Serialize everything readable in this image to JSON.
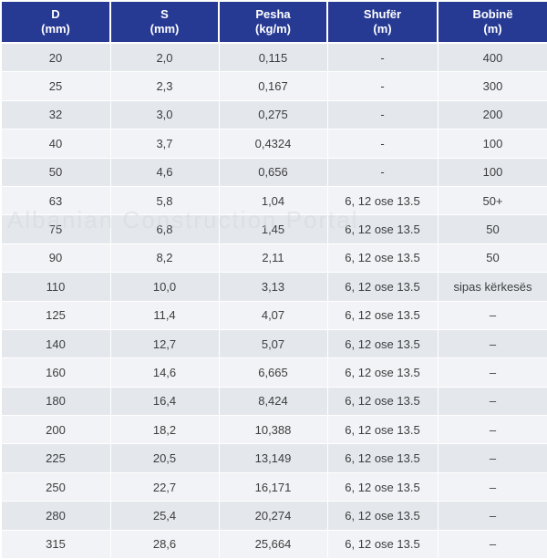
{
  "table": {
    "headers": [
      {
        "line1": "D",
        "line2": "(mm)"
      },
      {
        "line1": "S",
        "line2": "(mm)"
      },
      {
        "line1": "Pesha",
        "line2": "(kg/m)"
      },
      {
        "line1": "Shufër",
        "line2": "(m)"
      },
      {
        "line1": "Bobinë",
        "line2": "(m)"
      }
    ],
    "rows": [
      [
        "20",
        "2,0",
        "0,115",
        "-",
        "400"
      ],
      [
        "25",
        "2,3",
        "0,167",
        "-",
        "300"
      ],
      [
        "32",
        "3,0",
        "0,275",
        "-",
        "200"
      ],
      [
        "40",
        "3,7",
        "0,4324",
        "-",
        "100"
      ],
      [
        "50",
        "4,6",
        "0,656",
        "-",
        "100"
      ],
      [
        "63",
        "5,8",
        "1,04",
        "6, 12 ose 13.5",
        "50+"
      ],
      [
        "75",
        "6,8",
        "1,45",
        "6, 12 ose 13.5",
        "50"
      ],
      [
        "90",
        "8,2",
        "2,11",
        "6, 12 ose 13.5",
        "50"
      ],
      [
        "110",
        "10,0",
        "3,13",
        "6, 12 ose 13.5",
        "sipas kërkesës"
      ],
      [
        "125",
        "11,4",
        "4,07",
        "6, 12 ose 13.5",
        "–"
      ],
      [
        "140",
        "12,7",
        "5,07",
        "6, 12 ose 13.5",
        "–"
      ],
      [
        "160",
        "14,6",
        "6,665",
        "6, 12 ose 13.5",
        "–"
      ],
      [
        "180",
        "16,4",
        "8,424",
        "6, 12 ose 13.5",
        "–"
      ],
      [
        "200",
        "18,2",
        "10,388",
        "6, 12 ose 13.5",
        "–"
      ],
      [
        "225",
        "20,5",
        "13,149",
        "6, 12 ose 13.5",
        "–"
      ],
      [
        "250",
        "22,7",
        "16,171",
        "6, 12 ose 13.5",
        "–"
      ],
      [
        "280",
        "25,4",
        "20,274",
        "6, 12 ose 13.5",
        "–"
      ],
      [
        "315",
        "28,6",
        "25,664",
        "6, 12 ose 13.5",
        "–"
      ]
    ]
  },
  "watermark": "Albanian Construction Portal",
  "colors": {
    "header_bg": "#273a93",
    "header_text": "#ffffff",
    "row_odd": "#e4e8ed",
    "row_even": "#f1f3f6",
    "cell_text": "#3d3d3d"
  }
}
